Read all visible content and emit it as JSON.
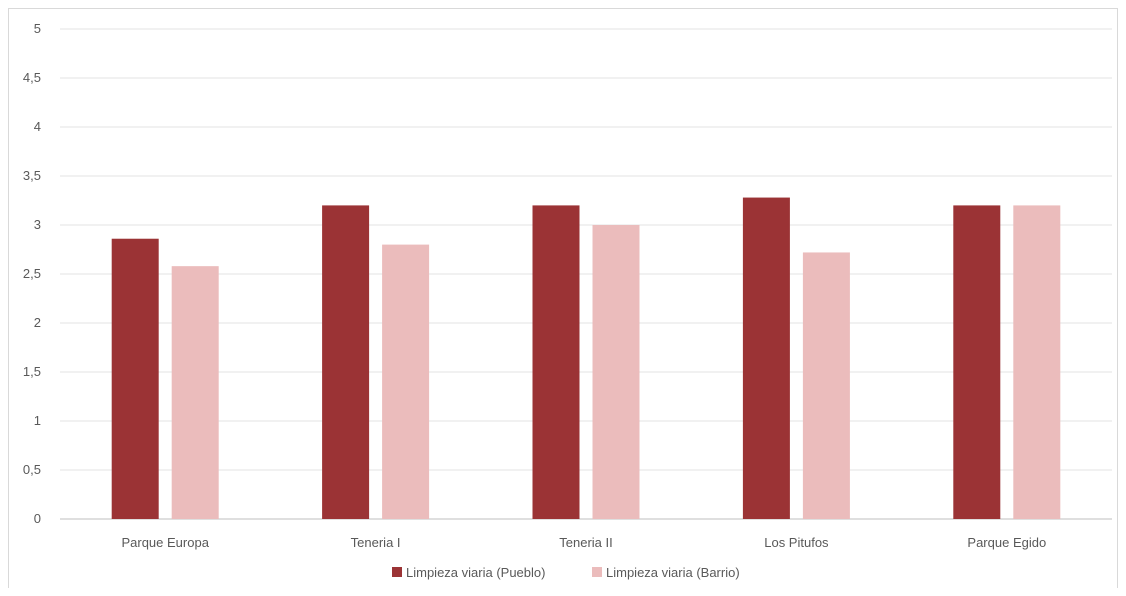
{
  "chart_data": {
    "type": "bar",
    "categories": [
      "Parque Europa",
      "Teneria I",
      "Teneria II",
      "Los Pitufos",
      "Parque Egido"
    ],
    "series": [
      {
        "name": "Limpieza viaria (Pueblo)",
        "color": "#9b3335",
        "values": [
          2.86,
          3.2,
          3.2,
          3.28,
          3.2
        ]
      },
      {
        "name": "Limpieza viaria (Barrio)",
        "color": "#ebbcbc",
        "values": [
          2.58,
          2.8,
          3.0,
          2.72,
          3.2
        ]
      }
    ],
    "yticks": [
      "0",
      "0,5",
      "1",
      "1,5",
      "2",
      "2,5",
      "3",
      "3,5",
      "4",
      "4,5",
      "5"
    ],
    "ylim": [
      0,
      5
    ],
    "grid": true,
    "legend_position": "bottom",
    "title": "",
    "xlabel": "",
    "ylabel": ""
  }
}
